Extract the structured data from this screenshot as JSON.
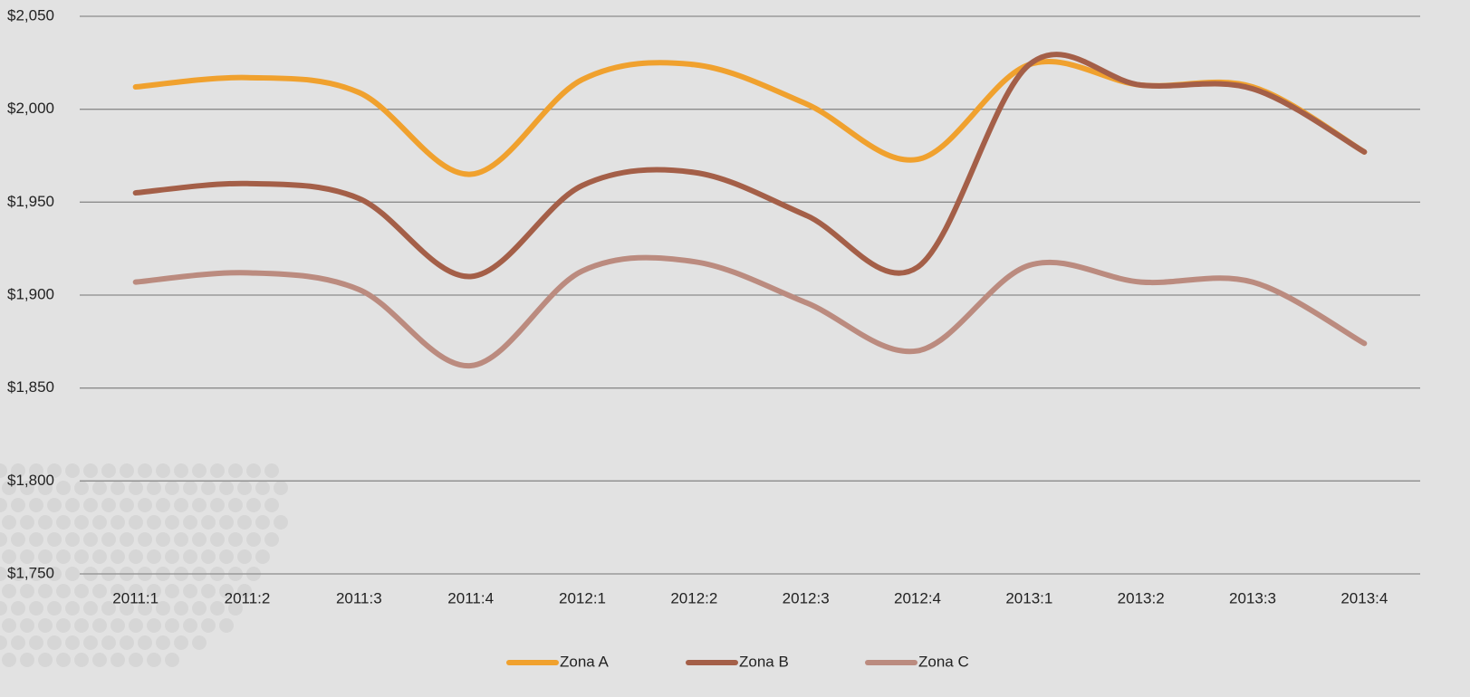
{
  "chart_data": {
    "type": "line",
    "categories": [
      "2011:1",
      "2011:2",
      "2011:3",
      "2011:4",
      "2012:1",
      "2012:2",
      "2012:3",
      "2012:4",
      "2013:1",
      "2013:2",
      "2013:3",
      "2013:4"
    ],
    "series": [
      {
        "name": "Zona A",
        "color": "#f0a12e",
        "values": [
          2012,
          2017,
          2009,
          1965,
          2016,
          2024,
          2003,
          1973,
          2024,
          2013,
          2012,
          1977
        ]
      },
      {
        "name": "Zona B",
        "color": "#a45f48",
        "values": [
          1955,
          1960,
          1952,
          1910,
          1959,
          1966,
          1943,
          1915,
          2024,
          2013,
          2011,
          1977
        ]
      },
      {
        "name": "Zona C",
        "color": "#bb8b7f",
        "values": [
          1907,
          1912,
          1903,
          1862,
          1913,
          1918,
          1896,
          1870,
          1916,
          1907,
          1907,
          1874
        ]
      }
    ],
    "ylim": [
      1750,
      2050
    ],
    "yticks": [
      {
        "value": 1750,
        "label": "$1,750"
      },
      {
        "value": 1800,
        "label": "$1,800"
      },
      {
        "value": 1850,
        "label": "$1,850"
      },
      {
        "value": 1900,
        "label": "$1,900"
      },
      {
        "value": 1950,
        "label": "$1,950"
      },
      {
        "value": 2000,
        "label": "$2,000"
      },
      {
        "value": 2050,
        "label": "$2,050"
      }
    ],
    "grid": true,
    "smooth": true,
    "legend": "bottom"
  }
}
